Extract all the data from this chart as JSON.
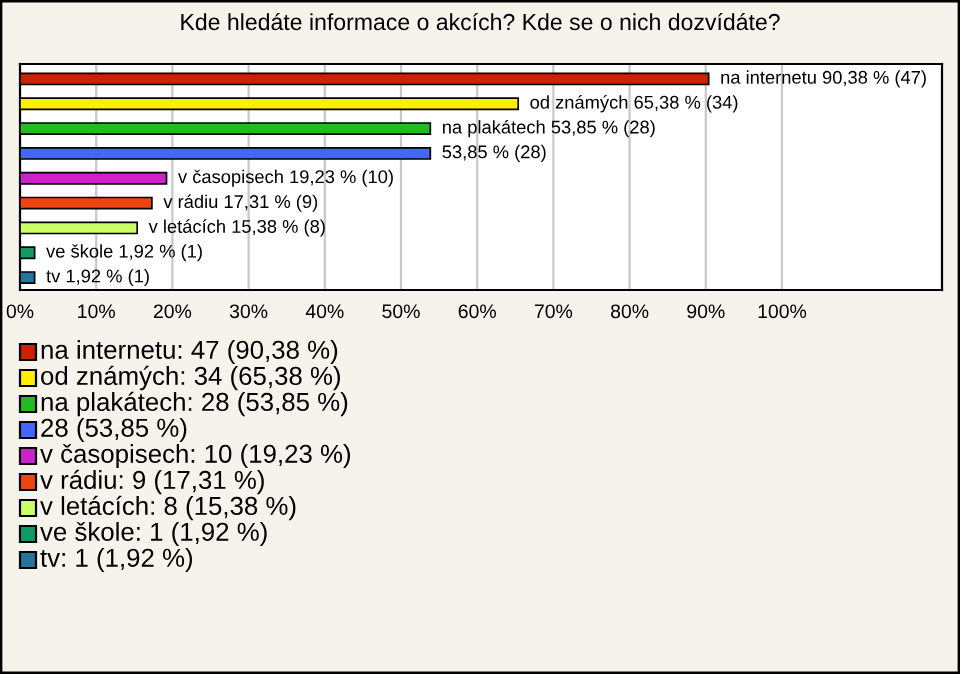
{
  "chart_data": {
    "type": "bar",
    "orientation": "horizontal",
    "title": "Kde hledáte informace o akcích? Kde se o nich dozvídáte?",
    "categories": [
      "na internetu",
      "od známých",
      "na plakátech",
      null,
      "v časopisech",
      "v rádiu",
      "v letácích",
      "ve škole",
      "tv"
    ],
    "values": [
      90.38,
      65.38,
      53.85,
      53.85,
      19.23,
      17.31,
      15.38,
      1.92,
      1.92
    ],
    "value_labels": [
      "90,38 % (47)",
      "65,38 % (34)",
      "53,85 % (28)",
      "53,85 % (28)",
      "19,23 % (10)",
      "17,31 % (9)",
      "15,38 % (8)",
      "1,92 % (1)",
      "1,92 % (1)"
    ],
    "colors": [
      "#cc2200",
      "#ffee00",
      "#22bb22",
      "#4466ff",
      "#cc22cc",
      "#ee4411",
      "#ccff66",
      "#119966",
      "#227799"
    ],
    "xlim": [
      0,
      121
    ],
    "xticks": [
      {
        "value": 0,
        "label": "0%"
      },
      {
        "value": 10,
        "label": "10%"
      },
      {
        "value": 20,
        "label": "20%"
      },
      {
        "value": 30,
        "label": "30%"
      },
      {
        "value": 40,
        "label": "40%"
      },
      {
        "value": 50,
        "label": "50%"
      },
      {
        "value": 60,
        "label": "60%"
      },
      {
        "value": 70,
        "label": "70%"
      },
      {
        "value": 80,
        "label": "80%"
      },
      {
        "value": 90,
        "label": "90%"
      },
      {
        "value": 100,
        "label": "100%"
      }
    ],
    "grid": "x",
    "annotations": [
      "na internetu: 47 (90,38 %)",
      "od známých: 34 (65,38 %)",
      "na plakátech: 28 (53,85 %)",
      "28 (53,85 %)",
      "v časopisech: 10 (19,23 %)",
      "v rádiu: 9 (17,31 %)",
      "v letácích: 8 (15,38 %)",
      "ve škole: 1 (1,92 %)",
      "tv: 1 (1,92 %)"
    ]
  }
}
